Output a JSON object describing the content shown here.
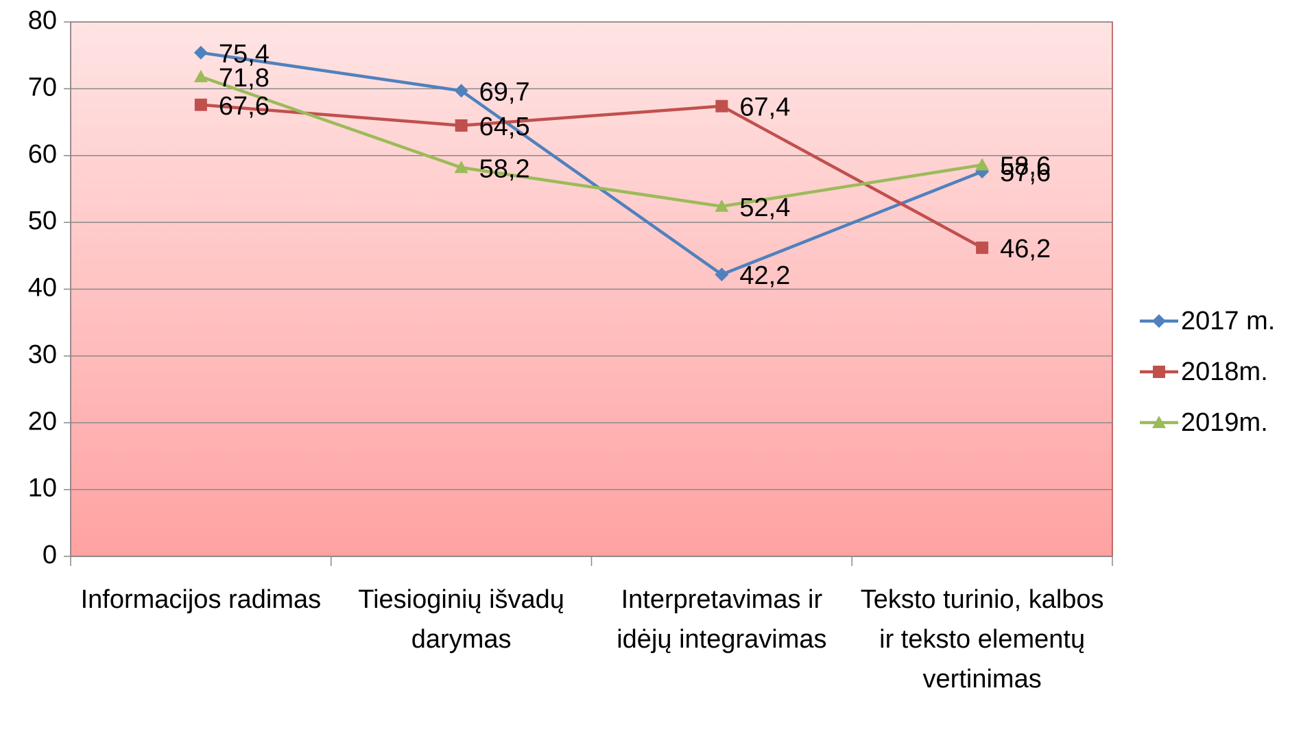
{
  "chart_data": {
    "type": "line",
    "categories": [
      "Informacijos radimas",
      "Tiesioginių išvadų darymas",
      "Interpretavimas ir idėjų integravimas",
      "Teksto turinio, kalbos ir teksto elementų vertinimas"
    ],
    "series": [
      {
        "name": "2017 m.",
        "color": "#4f81bd",
        "marker": "diamond",
        "values": [
          75.4,
          69.7,
          42.2,
          57.6
        ],
        "value_labels": [
          "75,4",
          "69,7",
          "42,2",
          "57,6"
        ]
      },
      {
        "name": "2018m.",
        "color": "#c0504d",
        "marker": "square",
        "values": [
          67.6,
          64.5,
          67.4,
          46.2
        ],
        "value_labels": [
          "67,6",
          "64,5",
          "67,4",
          "46,2"
        ]
      },
      {
        "name": "2019m.",
        "color": "#9bbb59",
        "marker": "triangle",
        "values": [
          71.8,
          58.2,
          52.4,
          58.6
        ],
        "value_labels": [
          "71,8",
          "58,2",
          "52,4",
          "58,6"
        ]
      }
    ],
    "ylim": [
      0,
      80
    ],
    "yticks": [
      0,
      10,
      20,
      30,
      40,
      50,
      60,
      70,
      80
    ],
    "grid": true,
    "legend": "right"
  }
}
